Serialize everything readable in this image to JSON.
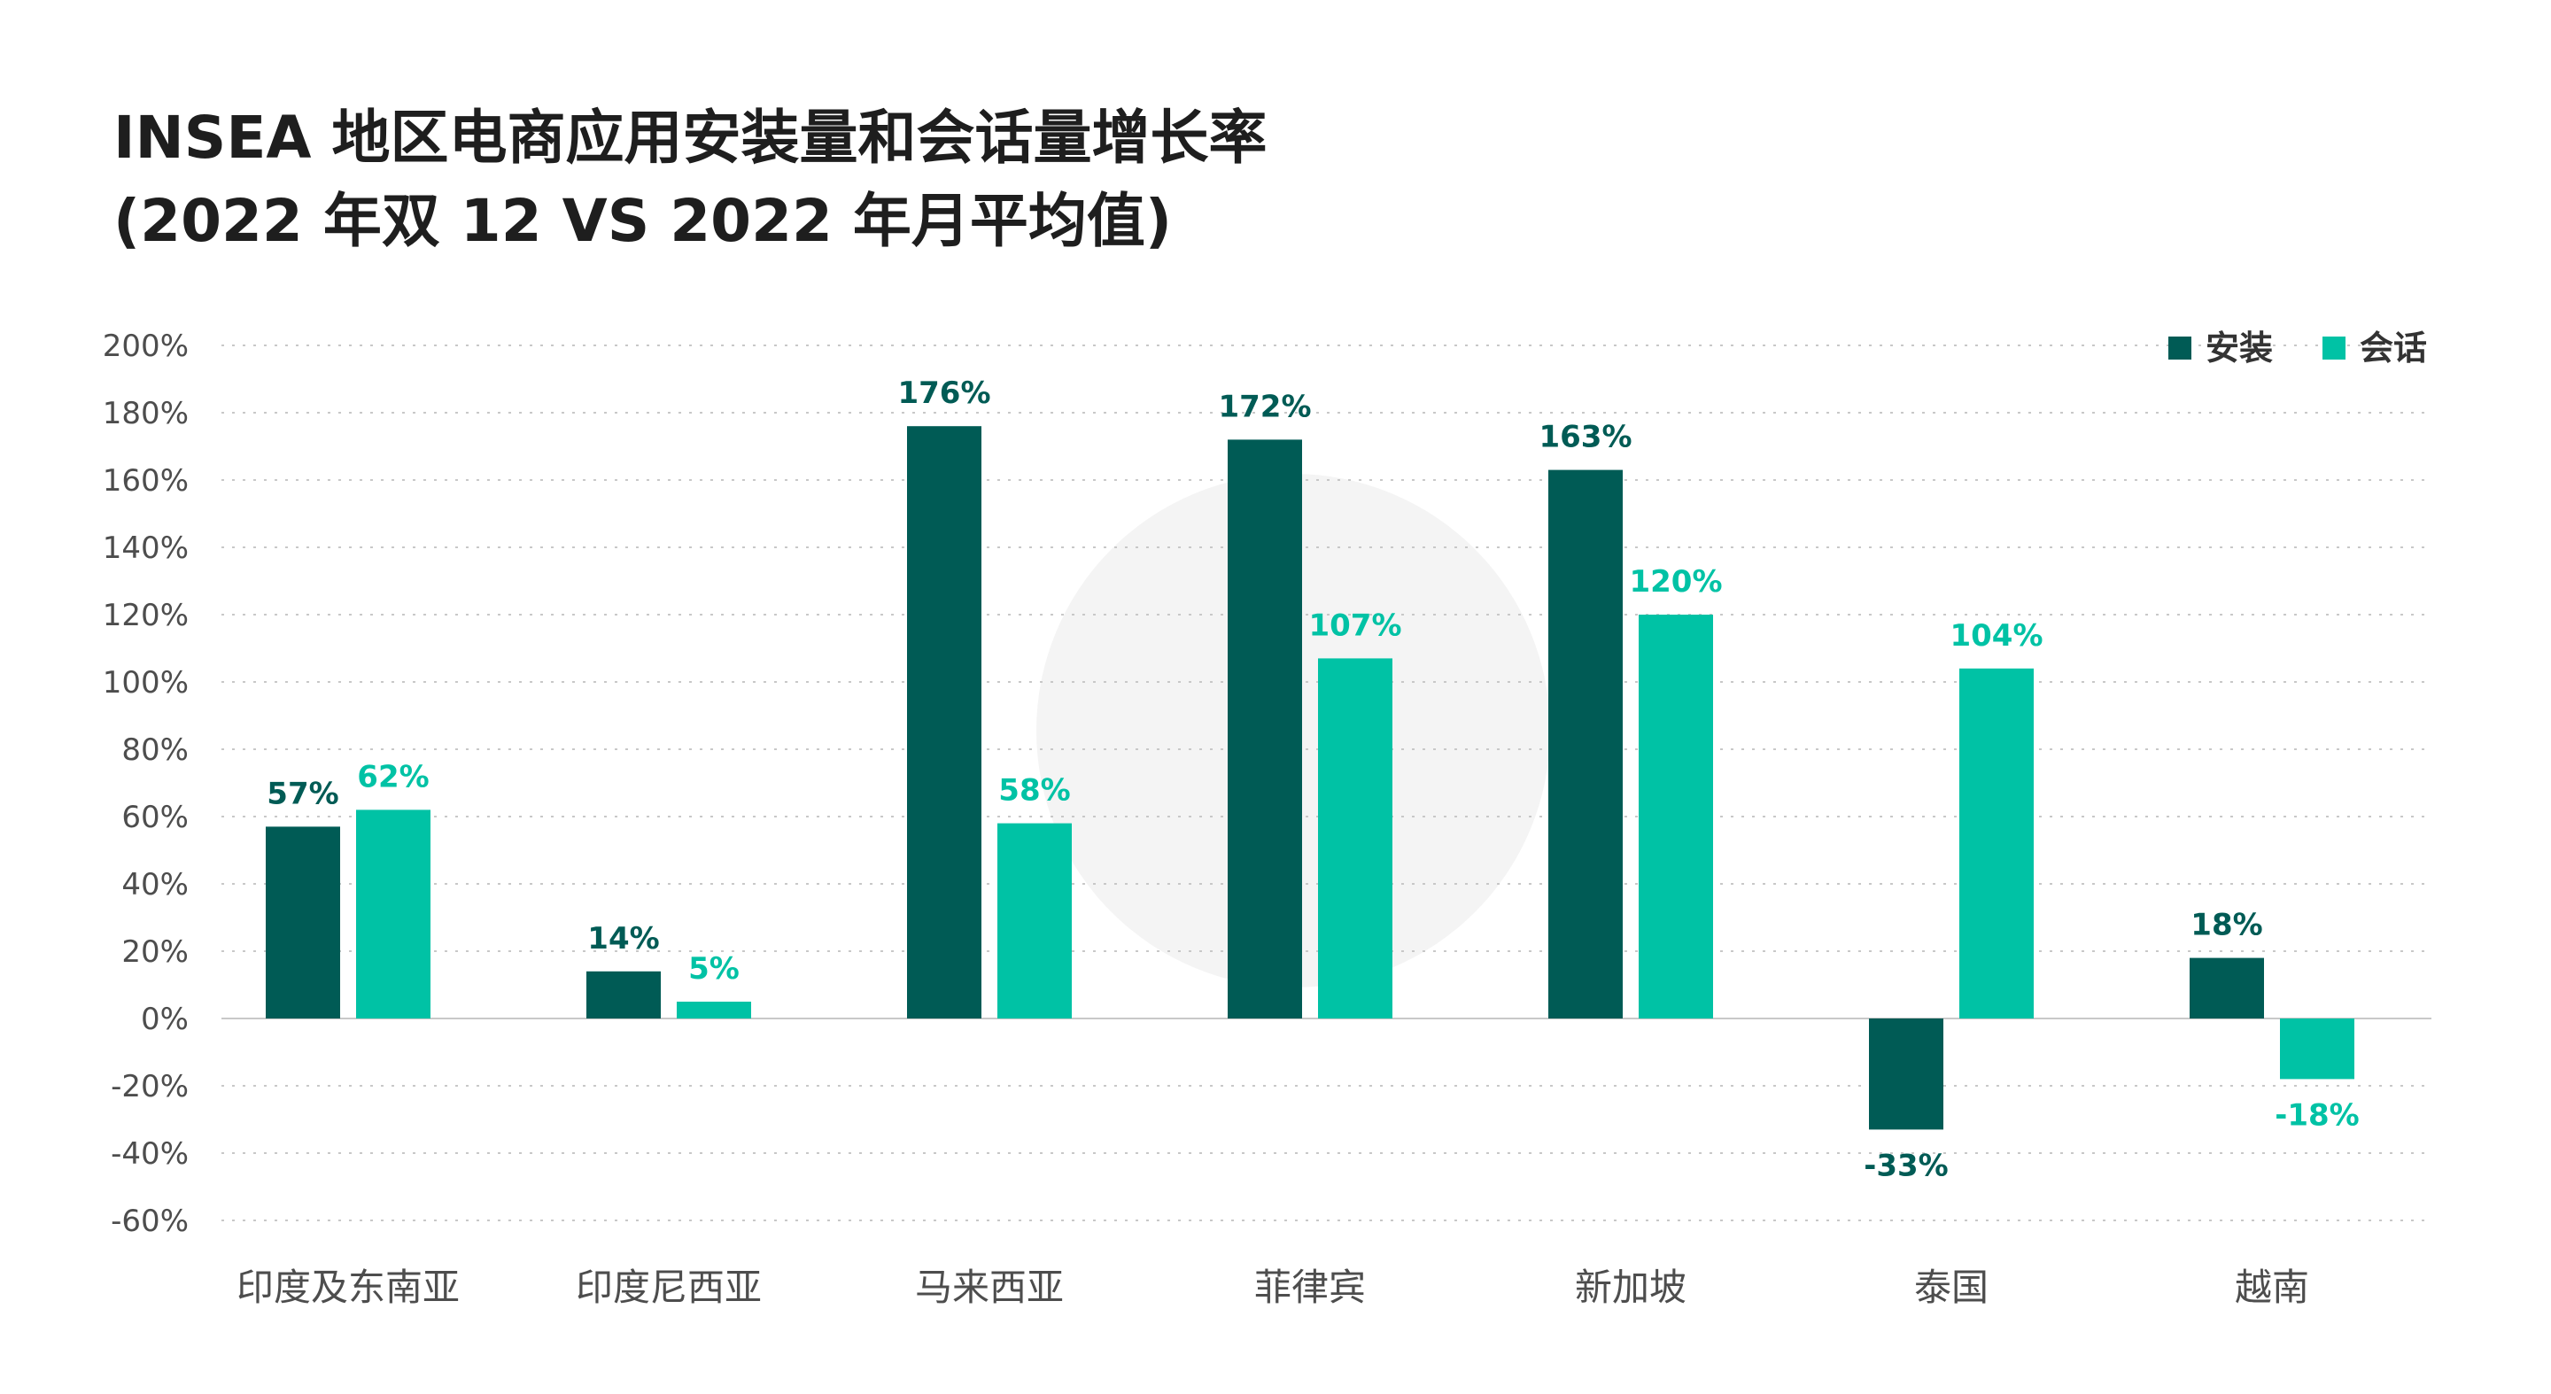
{
  "title_line1": "INSEA 地区电商应用安装量和会话量增长率",
  "title_line2": "(2022 年双 12 VS 2022 年月平均值)",
  "chart_data": {
    "type": "bar",
    "categories": [
      "印度及东南亚",
      "印度尼西亚",
      "马来西亚",
      "菲律宾",
      "新加坡",
      "泰国",
      "越南"
    ],
    "series": [
      {
        "name": "安装",
        "color": "#005b55",
        "values": [
          57,
          14,
          176,
          172,
          163,
          -33,
          18
        ],
        "labels": [
          "57%",
          "14%",
          "176%",
          "172%",
          "163%",
          "-33%",
          "18%"
        ]
      },
      {
        "name": "会话",
        "color": "#00c2a5",
        "values": [
          62,
          5,
          58,
          107,
          120,
          104,
          -18
        ],
        "labels": [
          "62%",
          "5%",
          "58%",
          "107%",
          "120%",
          "104%",
          "-18%"
        ]
      }
    ],
    "ylim": [
      -60,
      200
    ],
    "yticks": [
      200,
      180,
      160,
      140,
      120,
      100,
      80,
      60,
      40,
      20,
      0,
      -20,
      -40,
      -60
    ],
    "ytick_labels": [
      "200%",
      "180%",
      "160%",
      "140%",
      "120%",
      "100%",
      "80%",
      "60%",
      "40%",
      "20%",
      "0%",
      "-20%",
      "-40%",
      "-60%"
    ],
    "grid": true,
    "legend_position": "top-right",
    "xlabel": "",
    "ylabel": ""
  }
}
